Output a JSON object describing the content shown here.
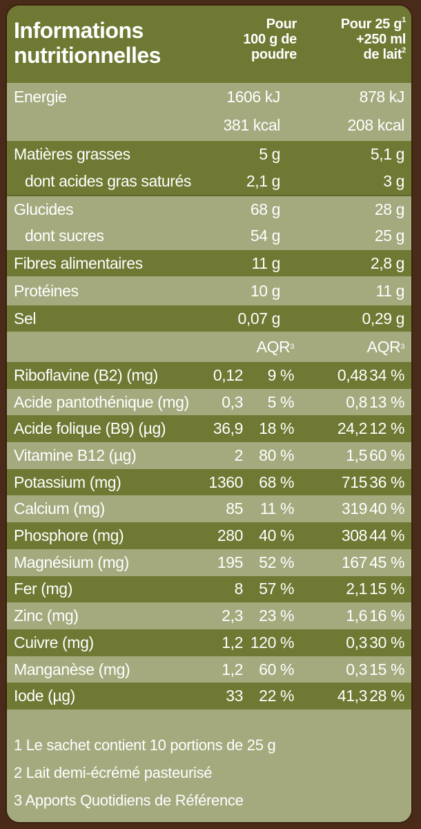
{
  "header": {
    "title_line1": "Informations",
    "title_line2": "nutritionnelles",
    "col1_line1": "Pour",
    "col1_line2": "100 g de",
    "col1_line3": "poudre",
    "col2_line1": "Pour 25 g",
    "col2_sup1": "1",
    "col2_line2": "+250 ml",
    "col2_line3": "de lait",
    "col2_sup3": "2"
  },
  "energy": {
    "label": "Energie",
    "kj_100": "1606 kJ",
    "kj_25": "878 kJ",
    "kcal_100": "381 kcal",
    "kcal_25": "208 kcal"
  },
  "macros": [
    {
      "label": "Matières grasses",
      "v100": "5 g",
      "v25": "5,1 g"
    },
    {
      "label": "dont acides gras saturés",
      "v100": "2,1 g",
      "v25": "3 g"
    },
    {
      "label": "Glucides",
      "v100": "68 g",
      "v25": "28 g"
    },
    {
      "label": "dont sucres",
      "v100": "54 g",
      "v25": "25 g"
    },
    {
      "label": "Fibres alimentaires",
      "v100": "11 g",
      "v25": "2,8 g"
    },
    {
      "label": "Protéines",
      "v100": "10 g",
      "v25": "11 g"
    },
    {
      "label": "Sel",
      "v100": "0,07 g",
      "v25": "0,29 g"
    }
  ],
  "aqr_header": {
    "label": "AQR",
    "sup": "3"
  },
  "micros": [
    {
      "label": "Riboflavine (B2) (mg)",
      "v100": "0,12",
      "p100": "9 %",
      "v25": "0,48",
      "p25": "34 %"
    },
    {
      "label": "Acide pantothénique (mg)",
      "v100": "0,3",
      "p100": "5 %",
      "v25": "0,8",
      "p25": "13 %"
    },
    {
      "label": "Acide folique (B9) (µg)",
      "v100": "36,9",
      "p100": "18 %",
      "v25": "24,2",
      "p25": "12 %"
    },
    {
      "label": "Vitamine B12 (µg)",
      "v100": "2",
      "p100": "80 %",
      "v25": "1,5",
      "p25": "60 %"
    },
    {
      "label": "Potassium (mg)",
      "v100": "1360",
      "p100": "68 %",
      "v25": "715",
      "p25": "36 %"
    },
    {
      "label": "Calcium (mg)",
      "v100": "85",
      "p100": "11 %",
      "v25": "319",
      "p25": "40 %"
    },
    {
      "label": "Phosphore (mg)",
      "v100": "280",
      "p100": "40 %",
      "v25": "308",
      "p25": "44 %"
    },
    {
      "label": "Magnésium (mg)",
      "v100": "195",
      "p100": "52 %",
      "v25": "167",
      "p25": "45 %"
    },
    {
      "label": "Fer (mg)",
      "v100": "8",
      "p100": "57 %",
      "v25": "2,1",
      "p25": "15 %"
    },
    {
      "label": "Zinc (mg)",
      "v100": "2,3",
      "p100": "23 %",
      "v25": "1,6",
      "p25": "16 %"
    },
    {
      "label": "Cuivre (mg)",
      "v100": "1,2",
      "p100": "120 %",
      "v25": "0,3",
      "p25": "30 %"
    },
    {
      "label": "Manganèse (mg)",
      "v100": "1,2",
      "p100": "60 %",
      "v25": "0,3",
      "p25": "15 %"
    },
    {
      "label": "Iode (µg)",
      "v100": "33",
      "p100": "22 %",
      "v25": "41,3",
      "p25": "28 %"
    }
  ],
  "footnotes": [
    "1 Le sachet contient 10 portions de 25 g",
    "2 Lait demi-écrémé pasteurisé",
    "3 Apports Quotidiens de Référence"
  ]
}
